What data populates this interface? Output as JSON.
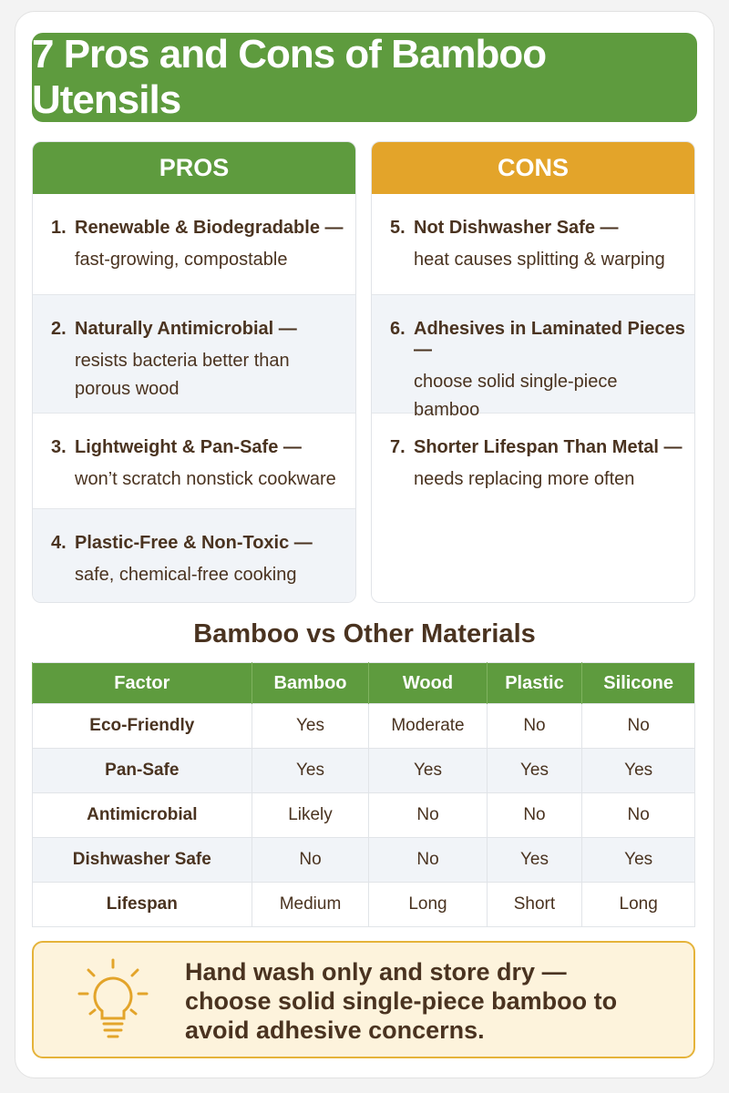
{
  "header": {
    "title": "7 Pros and Cons of Bamboo Utensils"
  },
  "pros": {
    "heading": "PROS",
    "items": [
      {
        "number": "1.",
        "title": "Renewable & Biodegradable —",
        "text": "fast-growing, compostable"
      },
      {
        "number": "2.",
        "title": "Naturally Antimicrobial —",
        "text": "resists bacteria better than porous wood"
      },
      {
        "number": "3.",
        "title": "Lightweight & Pan-Safe —",
        "text": "won’t scratch nonstick cookware"
      },
      {
        "number": "4.",
        "title": "Plastic-Free & Non-Toxic —",
        "text": "safe, chemical-free cooking"
      }
    ]
  },
  "cons": {
    "heading": "CONS",
    "items": [
      {
        "number": "5.",
        "title": "Not Dishwasher Safe —",
        "text": "heat causes splitting & warping"
      },
      {
        "number": "6.",
        "title": "Adhesives in Laminated Pieces —",
        "text": "choose solid single-piece bamboo"
      },
      {
        "number": "7.",
        "title": "Shorter Lifespan Than Metal —",
        "text": "needs replacing more often"
      }
    ]
  },
  "table": {
    "title": "Bamboo vs Other Materials",
    "headers": [
      "Factor",
      "Bamboo",
      "Wood",
      "Plastic",
      "Silicone"
    ],
    "rows": [
      [
        "Eco-Friendly",
        "Yes",
        "Moderate",
        "No",
        "No"
      ],
      [
        "Pan-Safe",
        "Yes",
        "Yes",
        "Yes",
        "Yes"
      ],
      [
        "Antimicrobial",
        "Likely",
        "No",
        "No",
        "No"
      ],
      [
        "Dishwasher Safe",
        "No",
        "No",
        "Yes",
        "Yes"
      ],
      [
        "Lifespan",
        "Medium",
        "Long",
        "Short",
        "Long"
      ]
    ]
  },
  "tip": {
    "text": "Hand wash only and store dry — choose solid single-piece bamboo to avoid adhesive concerns."
  }
}
